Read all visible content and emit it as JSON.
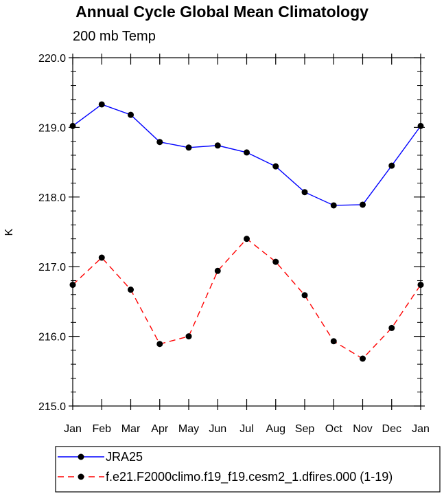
{
  "chart_data": {
    "type": "line",
    "title": "Annual Cycle Global Mean Climatology",
    "subtitle": "200 mb Temp",
    "ylabel": "K",
    "xlabel": "",
    "categories": [
      "Jan",
      "Feb",
      "Mar",
      "Apr",
      "May",
      "Jun",
      "Jul",
      "Aug",
      "Sep",
      "Oct",
      "Nov",
      "Dec",
      "Jan"
    ],
    "ylim": [
      215.0,
      220.0
    ],
    "yticks": [
      "215.0",
      "216.0",
      "217.0",
      "218.0",
      "219.0",
      "220.0"
    ],
    "series": [
      {
        "name": "JRA25",
        "color": "#0000ff",
        "dashed": false,
        "values": [
          219.02,
          219.33,
          219.18,
          218.79,
          218.71,
          218.74,
          218.64,
          218.44,
          218.07,
          217.88,
          217.89,
          218.45,
          219.02
        ]
      },
      {
        "name": "f.e21.F2000climo.f19_f19.cesm2_1.dfires.000 (1-19)",
        "color": "#ff0000",
        "dashed": true,
        "values": [
          216.74,
          217.13,
          216.67,
          215.89,
          216.0,
          216.94,
          217.4,
          217.07,
          216.59,
          215.93,
          215.68,
          216.12,
          216.74
        ]
      }
    ],
    "legend": "bottom"
  }
}
